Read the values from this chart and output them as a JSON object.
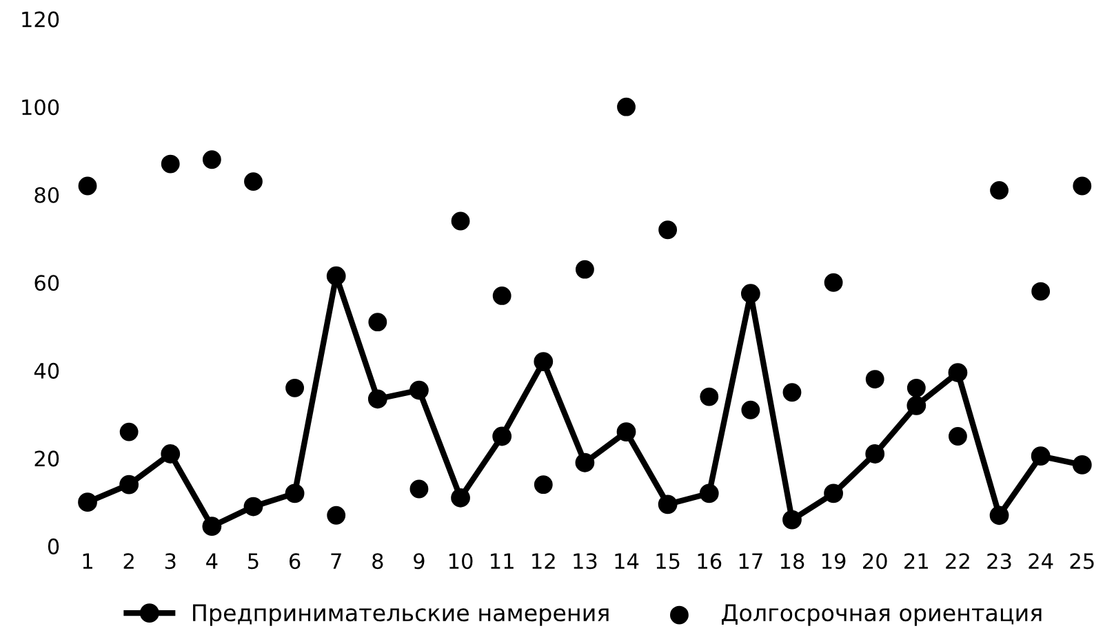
{
  "chart_data": {
    "type": "line",
    "categories": [
      "1",
      "2",
      "3",
      "4",
      "5",
      "6",
      "7",
      "8",
      "9",
      "10",
      "11",
      "12",
      "13",
      "14",
      "15",
      "16",
      "17",
      "18",
      "19",
      "20",
      "21",
      "22",
      "23",
      "24",
      "25"
    ],
    "series": [
      {
        "name": "Предпринимательские намерения",
        "color": "#000000",
        "marker": "circle",
        "line_style": "solid",
        "values": [
          10,
          14,
          21,
          4.5,
          9,
          12,
          61.5,
          33.5,
          35.5,
          11,
          25,
          42,
          19,
          26,
          9.5,
          12,
          57.5,
          6,
          12,
          21,
          32,
          39.5,
          7,
          20.5,
          18.5
        ]
      },
      {
        "name": "Долгосрочная ориентация",
        "color": "#000000",
        "type": "scatter",
        "marker": "circle",
        "values": [
          82,
          26,
          87,
          88,
          83,
          36,
          7,
          51,
          13,
          74,
          57,
          14,
          63,
          100,
          72,
          34,
          31,
          35,
          60,
          38,
          36,
          25,
          81,
          58,
          82
        ]
      }
    ],
    "ylim": [
      0,
      120
    ],
    "yticks": [
      0,
      20,
      40,
      60,
      80,
      100,
      120
    ],
    "grid": false,
    "legend": "bottom"
  }
}
